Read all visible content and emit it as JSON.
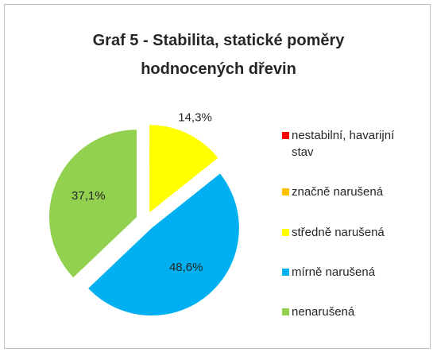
{
  "chart_data": {
    "type": "pie",
    "title": "Graf 5 - Stabilita, statické poměry hodnocených dřevin",
    "categories": [
      "nestabilní, havarijní stav",
      "značně narušená",
      "středně narušená",
      "mírně narušená",
      "nenarušená"
    ],
    "values": [
      0,
      0,
      14.3,
      48.6,
      37.1
    ],
    "value_labels": [
      null,
      null,
      "14,3%",
      "48,6%",
      "37,1%"
    ],
    "colors": [
      "#ff0000",
      "#ffc000",
      "#ffff00",
      "#00b0f0",
      "#92d050"
    ],
    "legend": "right"
  }
}
